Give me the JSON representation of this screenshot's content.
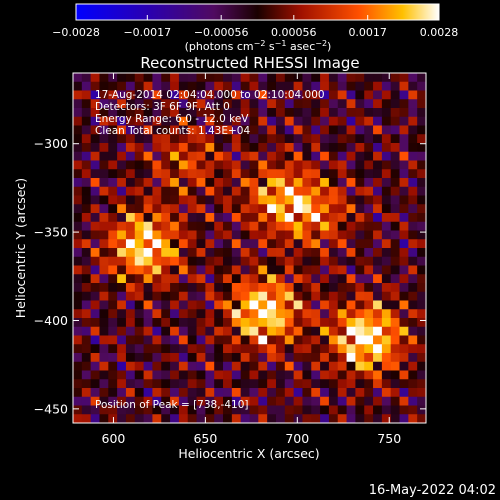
{
  "chart_data": {
    "type": "heatmap",
    "title": "Reconstructed RHESSI Image",
    "xlabel": "Heliocentric X (arcsec)",
    "ylabel": "Heliocentric Y (arcsec)",
    "xlim": [
      578,
      770
    ],
    "ylim": [
      -458,
      -260
    ],
    "xticks": [
      {
        "value": 600,
        "label": "600"
      },
      {
        "value": 650,
        "label": "650"
      },
      {
        "value": 700,
        "label": "700"
      },
      {
        "value": 750,
        "label": "750"
      }
    ],
    "yticks": [
      {
        "value": -300,
        "label": "−300"
      },
      {
        "value": -350,
        "label": "−350"
      },
      {
        "value": -400,
        "label": "−400"
      },
      {
        "value": -450,
        "label": "−450"
      }
    ],
    "colorbar": {
      "range": [
        -0.0028,
        0.0028
      ],
      "ticks": [
        {
          "value": -0.0028,
          "label": "−0.0028"
        },
        {
          "value": -0.0017,
          "label": "−0.0017"
        },
        {
          "value": -0.00056,
          "label": "−0.00056"
        },
        {
          "value": 0.00056,
          "label": "0.00056"
        },
        {
          "value": 0.0017,
          "label": "0.0017"
        },
        {
          "value": 0.0028,
          "label": "0.0028"
        }
      ],
      "unit_prefix": "(photons cm",
      "unit_sup1": "−2",
      "unit_mid": " s",
      "unit_sup2": "−1",
      "unit_mid2": " asec",
      "unit_sup3": "−2",
      "unit_suffix": ")"
    },
    "annotations": [
      "17-Aug-2014 02:04:04.000 to 02:10:04.000",
      "Detectors: 3F 6F 9F, Att 0",
      "Energy Range: 6.0 - 12.0 keV",
      "Clean     Total counts: 1.43E+04"
    ],
    "peak_label": "Position of Peak = [738,-410]",
    "peak": {
      "x": 738,
      "y": -410
    },
    "sources": [
      {
        "x": 617,
        "y": -358,
        "amp": 0.0026
      },
      {
        "x": 682,
        "y": -395,
        "amp": 0.0027
      },
      {
        "x": 690,
        "y": -330,
        "amp": 0.0018
      },
      {
        "x": 738,
        "y": -410,
        "amp": 0.0028
      },
      {
        "x": 640,
        "y": -310,
        "amp": 0.0012
      },
      {
        "x": 710,
        "y": -340,
        "amp": 0.0014
      }
    ],
    "grid": false
  },
  "footer": {
    "date": "16-May-2022 04:02"
  }
}
